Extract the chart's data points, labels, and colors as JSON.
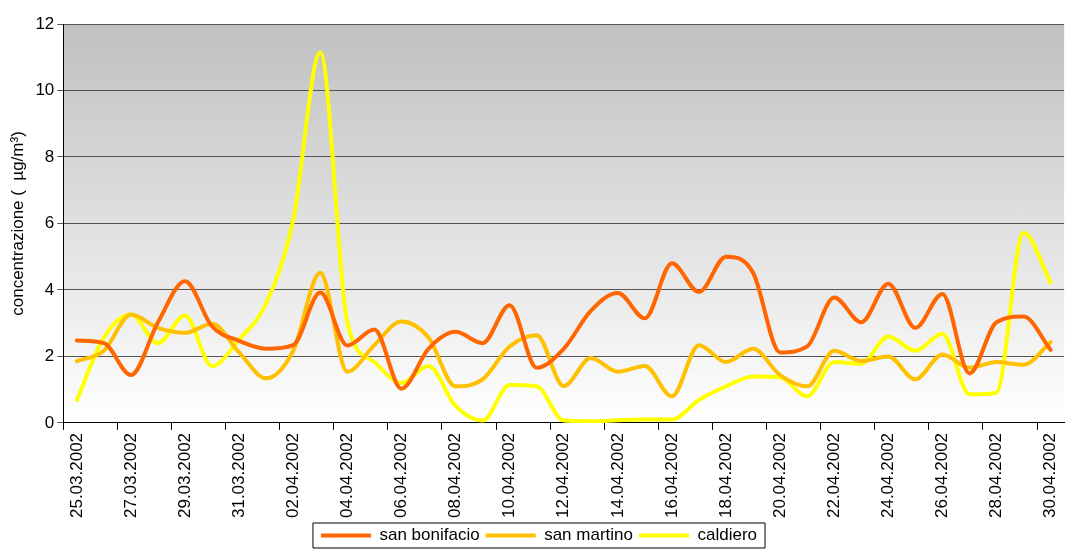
{
  "chart_data": {
    "type": "line",
    "ylabel": "concentrazione (  µg/m³)",
    "categories": [
      "25.03.2002",
      null,
      "27.03.2002",
      null,
      "29.03.2002",
      null,
      "31.03.2002",
      null,
      "02.04.2002",
      null,
      "04.04.2002",
      null,
      "06.04.2002",
      null,
      "08.04.2002",
      null,
      "10.04.2002",
      null,
      "12.04.2002",
      null,
      "14.04.2002",
      null,
      "16.04.2002",
      null,
      "18.04.2002",
      null,
      "20.04.2002",
      null,
      "22.04.2002",
      null,
      "24.04.2002",
      null,
      "26.04.2002",
      null,
      "28.04.2002",
      null,
      "30.04.2002"
    ],
    "series": [
      {
        "name": "san bonifacio",
        "color": "#ff6600",
        "values": [
          2.48,
          2.4,
          1.44,
          3.03,
          4.26,
          2.9,
          2.47,
          2.23,
          2.34,
          3.92,
          2.33,
          2.81,
          1.03,
          2.23,
          2.74,
          2.4,
          3.54,
          1.66,
          2.23,
          3.37,
          3.91,
          3.15,
          4.8,
          3.94,
          5.0,
          4.52,
          2.12,
          2.3,
          3.77,
          3.03,
          4.19,
          2.86,
          3.88,
          1.49,
          3.03,
          3.2,
          2.2
        ]
      },
      {
        "name": "san martino",
        "color": "#ffc000",
        "values": [
          1.86,
          2.17,
          3.26,
          2.86,
          2.71,
          2.98,
          2.12,
          1.34,
          2.17,
          4.52,
          1.54,
          2.34,
          3.05,
          2.57,
          1.1,
          1.31,
          2.3,
          2.64,
          1.11,
          1.95,
          1.54,
          1.71,
          0.8,
          2.34,
          1.83,
          2.23,
          1.44,
          1.1,
          2.17,
          1.86,
          2.0,
          1.31,
          2.06,
          1.66,
          1.83,
          1.75,
          2.43
        ]
      },
      {
        "name": "caldiero",
        "color": "#ffff00",
        "values": [
          0.69,
          2.57,
          3.26,
          2.4,
          3.23,
          1.71,
          2.51,
          3.6,
          6.11,
          11.14,
          3.03,
          1.83,
          1.2,
          1.71,
          0.51,
          0.07,
          1.14,
          1.1,
          0.07,
          0.05,
          0.08,
          0.1,
          0.1,
          0.69,
          1.1,
          1.4,
          1.37,
          0.8,
          1.83,
          1.78,
          2.6,
          2.17,
          2.68,
          0.86,
          0.91,
          5.72,
          4.23
        ]
      }
    ],
    "ylim": [
      0,
      12
    ],
    "yticks": [
      0,
      2,
      4,
      6,
      8,
      10,
      12
    ],
    "grid": "y",
    "legend": "bottom",
    "marker": "none",
    "line_style": "solid"
  }
}
